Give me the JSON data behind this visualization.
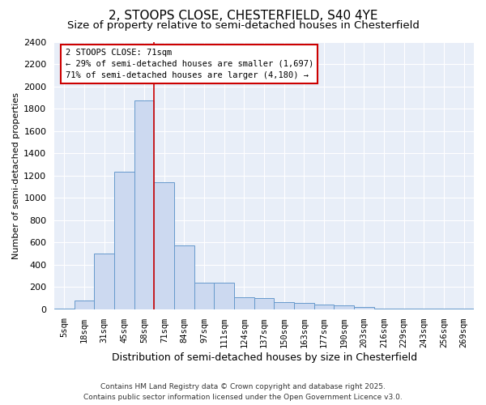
{
  "title": "2, STOOPS CLOSE, CHESTERFIELD, S40 4YE",
  "subtitle": "Size of property relative to semi-detached houses in Chesterfield",
  "xlabel": "Distribution of semi-detached houses by size in Chesterfield",
  "ylabel": "Number of semi-detached properties",
  "footer_line1": "Contains HM Land Registry data © Crown copyright and database right 2025.",
  "footer_line2": "Contains public sector information licensed under the Open Government Licence v3.0.",
  "bar_labels": [
    "5sqm",
    "18sqm",
    "31sqm",
    "45sqm",
    "58sqm",
    "71sqm",
    "84sqm",
    "97sqm",
    "111sqm",
    "124sqm",
    "137sqm",
    "150sqm",
    "163sqm",
    "177sqm",
    "190sqm",
    "203sqm",
    "216sqm",
    "229sqm",
    "243sqm",
    "256sqm",
    "269sqm"
  ],
  "bar_values": [
    5,
    75,
    500,
    1230,
    1870,
    1140,
    570,
    240,
    240,
    110,
    100,
    60,
    55,
    40,
    35,
    20,
    8,
    5,
    5,
    5,
    3
  ],
  "bar_color": "#ccd9f0",
  "bar_edge_color": "#6699cc",
  "vline_pos": 4.5,
  "vline_color": "#cc0000",
  "annotation_title": "2 STOOPS CLOSE: 71sqm",
  "annotation_line1": "← 29% of semi-detached houses are smaller (1,697)",
  "annotation_line2": "71% of semi-detached houses are larger (4,180) →",
  "ylim": [
    0,
    2400
  ],
  "yticks": [
    0,
    200,
    400,
    600,
    800,
    1000,
    1200,
    1400,
    1600,
    1800,
    2000,
    2200,
    2400
  ],
  "bg_color": "#ffffff",
  "plot_bg_color": "#e8eef8",
  "title_fontsize": 11,
  "subtitle_fontsize": 9.5,
  "xlabel_fontsize": 9,
  "ylabel_fontsize": 8,
  "tick_fontsize": 8,
  "ann_fontsize": 7.5,
  "footer_fontsize": 6.5
}
